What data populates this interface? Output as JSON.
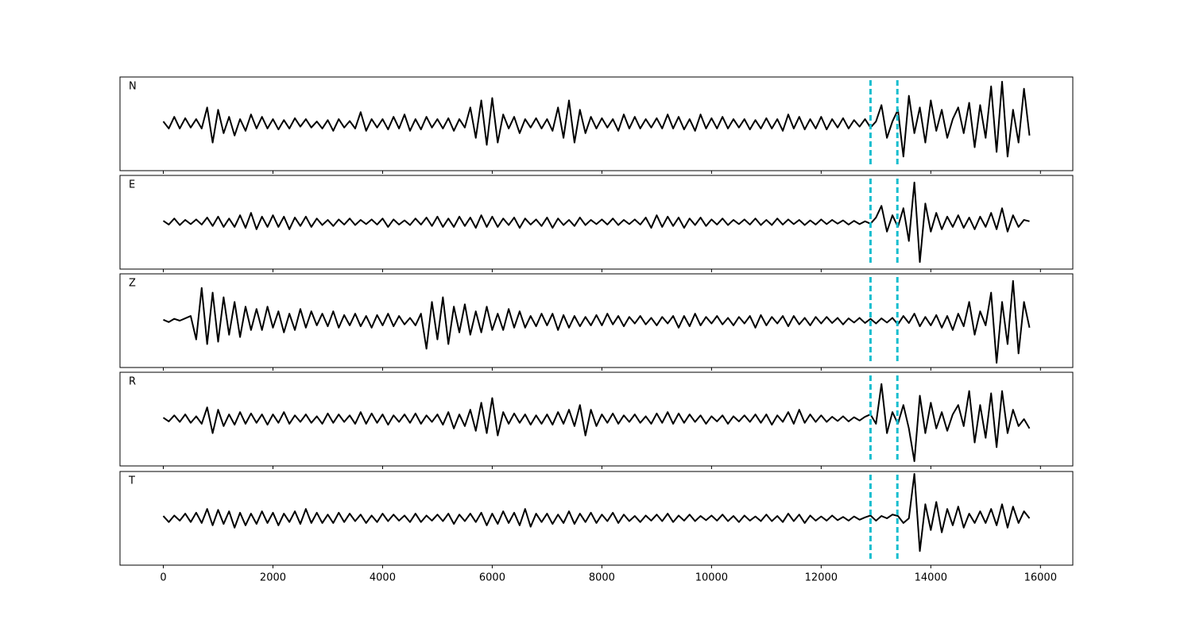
{
  "chart_data": {
    "type": "line",
    "x": [
      0,
      100,
      200,
      300,
      400,
      500,
      600,
      700,
      800,
      900,
      1000,
      1100,
      1200,
      1300,
      1400,
      1500,
      1600,
      1700,
      1800,
      1900,
      2000,
      2100,
      2200,
      2300,
      2400,
      2500,
      2600,
      2700,
      2800,
      2900,
      3000,
      3100,
      3200,
      3300,
      3400,
      3500,
      3600,
      3700,
      3800,
      3900,
      4000,
      4100,
      4200,
      4300,
      4400,
      4500,
      4600,
      4700,
      4800,
      4900,
      5000,
      5100,
      5200,
      5300,
      5400,
      5500,
      5600,
      5700,
      5800,
      5900,
      6000,
      6100,
      6200,
      6300,
      6400,
      6500,
      6600,
      6700,
      6800,
      6900,
      7000,
      7100,
      7200,
      7300,
      7400,
      7500,
      7600,
      7700,
      7800,
      7900,
      8000,
      8100,
      8200,
      8300,
      8400,
      8500,
      8600,
      8700,
      8800,
      8900,
      9000,
      9100,
      9200,
      9300,
      9400,
      9500,
      9600,
      9700,
      9800,
      9900,
      10000,
      10100,
      10200,
      10300,
      10400,
      10500,
      10600,
      10700,
      10800,
      10900,
      11000,
      11100,
      11200,
      11300,
      11400,
      11500,
      11600,
      11700,
      11800,
      11900,
      12000,
      12100,
      12200,
      12300,
      12400,
      12500,
      12600,
      12700,
      12800,
      12900,
      13000,
      13100,
      13200,
      13300,
      13400,
      13500,
      13600,
      13700,
      13800,
      13900,
      14000,
      14100,
      14200,
      14300,
      14400,
      14500,
      14600,
      14700,
      14800,
      14900,
      15000,
      15100,
      15200,
      15300,
      15400,
      15500,
      15600,
      15700,
      15800
    ],
    "series": [
      {
        "name": "N",
        "color": "#000000",
        "values": [
          0.05,
          -0.1,
          0.15,
          -0.1,
          0.12,
          -0.08,
          0.1,
          -0.1,
          0.35,
          -0.4,
          0.3,
          -0.2,
          0.15,
          -0.25,
          0.1,
          -0.15,
          0.2,
          -0.1,
          0.15,
          -0.1,
          0.1,
          -0.12,
          0.08,
          -0.1,
          0.12,
          -0.06,
          0.1,
          -0.08,
          0.05,
          -0.1,
          0.08,
          -0.15,
          0.1,
          -0.08,
          0.06,
          -0.1,
          0.25,
          -0.15,
          0.1,
          -0.08,
          0.1,
          -0.12,
          0.15,
          -0.1,
          0.2,
          -0.15,
          0.1,
          -0.12,
          0.15,
          -0.08,
          0.1,
          -0.1,
          0.12,
          -0.15,
          0.1,
          -0.08,
          0.35,
          -0.3,
          0.5,
          -0.45,
          0.55,
          -0.4,
          0.2,
          -0.1,
          0.15,
          -0.2,
          0.1,
          -0.08,
          0.12,
          -0.1,
          0.1,
          -0.15,
          0.35,
          -0.3,
          0.5,
          -0.4,
          0.3,
          -0.2,
          0.15,
          -0.1,
          0.12,
          -0.08,
          0.1,
          -0.15,
          0.2,
          -0.1,
          0.15,
          -0.1,
          0.1,
          -0.08,
          0.12,
          -0.1,
          0.2,
          -0.1,
          0.15,
          -0.12,
          0.1,
          -0.15,
          0.2,
          -0.1,
          0.12,
          -0.1,
          0.15,
          -0.1,
          0.1,
          -0.08,
          0.1,
          -0.12,
          0.08,
          -0.1,
          0.12,
          -0.1,
          0.1,
          -0.15,
          0.2,
          -0.1,
          0.15,
          -0.12,
          0.1,
          -0.1,
          0.15,
          -0.12,
          0.1,
          -0.08,
          0.12,
          -0.1,
          0.08,
          -0.06,
          0.1,
          -0.08,
          0.05,
          0.4,
          -0.3,
          0.05,
          0.3,
          -0.7,
          0.6,
          -0.2,
          0.35,
          -0.4,
          0.5,
          -0.15,
          0.3,
          -0.3,
          0.1,
          0.35,
          -0.2,
          0.45,
          -0.5,
          0.4,
          -0.3,
          0.8,
          -0.6,
          0.9,
          -0.7,
          0.3,
          -0.4,
          0.75,
          -0.25
        ]
      },
      {
        "name": "E",
        "color": "#000000",
        "values": [
          0.03,
          -0.05,
          0.08,
          -0.06,
          0.05,
          -0.04,
          0.06,
          -0.05,
          0.1,
          -0.08,
          0.12,
          -0.1,
          0.08,
          -0.1,
          0.15,
          -0.12,
          0.2,
          -0.15,
          0.12,
          -0.1,
          0.15,
          -0.1,
          0.12,
          -0.15,
          0.1,
          -0.08,
          0.12,
          -0.1,
          0.08,
          -0.06,
          0.05,
          -0.08,
          0.06,
          -0.05,
          0.08,
          -0.06,
          0.05,
          -0.04,
          0.06,
          -0.05,
          0.08,
          -0.1,
          0.06,
          -0.05,
          0.04,
          -0.06,
          0.08,
          -0.05,
          0.1,
          -0.08,
          0.12,
          -0.1,
          0.08,
          -0.1,
          0.12,
          -0.08,
          0.1,
          -0.12,
          0.15,
          -0.1,
          0.12,
          -0.1,
          0.08,
          -0.06,
          0.1,
          -0.12,
          0.08,
          -0.05,
          0.06,
          -0.08,
          0.1,
          -0.12,
          0.08,
          -0.06,
          0.05,
          -0.08,
          0.1,
          -0.06,
          0.05,
          -0.04,
          0.06,
          -0.05,
          0.08,
          -0.06,
          0.05,
          -0.04,
          0.06,
          -0.05,
          0.1,
          -0.12,
          0.15,
          -0.1,
          0.12,
          -0.08,
          0.1,
          -0.12,
          0.08,
          -0.06,
          0.1,
          -0.08,
          0.06,
          -0.05,
          0.08,
          -0.06,
          0.05,
          -0.04,
          0.06,
          -0.05,
          0.08,
          -0.06,
          0.05,
          -0.06,
          0.08,
          -0.05,
          0.06,
          -0.04,
          0.05,
          -0.06,
          0.04,
          -0.05,
          0.06,
          -0.04,
          0.05,
          -0.03,
          0.04,
          -0.05,
          0.03,
          -0.04,
          0.02,
          -0.03,
          0.1,
          0.35,
          -0.2,
          0.15,
          -0.1,
          0.3,
          -0.4,
          0.85,
          -0.85,
          0.4,
          -0.2,
          0.2,
          -0.15,
          0.12,
          -0.1,
          0.15,
          -0.12,
          0.1,
          -0.15,
          0.12,
          -0.1,
          0.2,
          -0.15,
          0.3,
          -0.2,
          0.15,
          -0.1,
          0.05,
          0.02
        ]
      },
      {
        "name": "Z",
        "color": "#000000",
        "values": [
          0.02,
          -0.03,
          0.04,
          0.0,
          0.05,
          0.1,
          -0.4,
          0.7,
          -0.5,
          0.6,
          -0.45,
          0.5,
          -0.3,
          0.4,
          -0.35,
          0.3,
          -0.2,
          0.25,
          -0.2,
          0.3,
          -0.15,
          0.2,
          -0.25,
          0.15,
          -0.2,
          0.25,
          -0.15,
          0.2,
          -0.1,
          0.15,
          -0.12,
          0.2,
          -0.15,
          0.12,
          -0.1,
          0.15,
          -0.12,
          0.1,
          -0.15,
          0.12,
          -0.1,
          0.15,
          -0.12,
          0.1,
          -0.08,
          0.06,
          -0.1,
          0.15,
          -0.6,
          0.4,
          -0.4,
          0.5,
          -0.5,
          0.3,
          -0.25,
          0.35,
          -0.3,
          0.2,
          -0.25,
          0.3,
          -0.2,
          0.15,
          -0.2,
          0.25,
          -0.15,
          0.2,
          -0.15,
          0.1,
          -0.12,
          0.15,
          -0.1,
          0.15,
          -0.2,
          0.12,
          -0.15,
          0.1,
          -0.12,
          0.08,
          -0.1,
          0.12,
          -0.1,
          0.15,
          -0.08,
          0.1,
          -0.12,
          0.08,
          -0.06,
          0.1,
          -0.08,
          0.06,
          -0.1,
          0.08,
          -0.06,
          0.1,
          -0.15,
          0.1,
          -0.12,
          0.15,
          -0.1,
          0.08,
          -0.06,
          0.1,
          -0.08,
          0.06,
          -0.1,
          0.08,
          -0.06,
          0.1,
          -0.15,
          0.12,
          -0.1,
          0.08,
          -0.06,
          0.1,
          -0.12,
          0.1,
          -0.08,
          0.06,
          -0.1,
          0.08,
          -0.06,
          0.08,
          -0.05,
          0.06,
          -0.08,
          0.05,
          -0.04,
          0.06,
          -0.05,
          0.04,
          -0.06,
          0.05,
          -0.04,
          0.06,
          -0.08,
          0.1,
          -0.05,
          0.15,
          -0.12,
          0.08,
          -0.1,
          0.12,
          -0.15,
          0.1,
          -0.2,
          0.15,
          -0.12,
          0.4,
          -0.3,
          0.2,
          -0.1,
          0.6,
          -0.9,
          0.4,
          -0.5,
          0.85,
          -0.7,
          0.4,
          -0.15
        ]
      },
      {
        "name": "R",
        "color": "#000000",
        "values": [
          0.03,
          -0.05,
          0.08,
          -0.06,
          0.1,
          -0.08,
          0.06,
          -0.1,
          0.25,
          -0.3,
          0.2,
          -0.15,
          0.1,
          -0.12,
          0.15,
          -0.1,
          0.12,
          -0.08,
          0.1,
          -0.12,
          0.1,
          -0.08,
          0.15,
          -0.1,
          0.08,
          -0.06,
          0.1,
          -0.08,
          0.06,
          -0.1,
          0.12,
          -0.08,
          0.1,
          -0.06,
          0.08,
          -0.1,
          0.15,
          -0.1,
          0.12,
          -0.08,
          0.1,
          -0.12,
          0.08,
          -0.06,
          0.1,
          -0.08,
          0.12,
          -0.1,
          0.08,
          -0.06,
          0.1,
          -0.12,
          0.15,
          -0.2,
          0.1,
          -0.15,
          0.2,
          -0.25,
          0.35,
          -0.3,
          0.45,
          -0.35,
          0.15,
          -0.1,
          0.12,
          -0.08,
          0.1,
          -0.12,
          0.08,
          -0.1,
          0.1,
          -0.12,
          0.15,
          -0.1,
          0.2,
          -0.15,
          0.3,
          -0.35,
          0.2,
          -0.15,
          0.1,
          -0.08,
          0.12,
          -0.1,
          0.08,
          -0.06,
          0.1,
          -0.08,
          0.06,
          -0.1,
          0.12,
          -0.08,
          0.15,
          -0.1,
          0.12,
          -0.08,
          0.1,
          -0.06,
          0.08,
          -0.1,
          0.06,
          -0.05,
          0.08,
          -0.1,
          0.06,
          -0.05,
          0.08,
          -0.06,
          0.1,
          -0.08,
          0.1,
          -0.12,
          0.08,
          -0.06,
          0.15,
          -0.1,
          0.2,
          -0.08,
          0.1,
          -0.06,
          0.08,
          -0.06,
          0.05,
          -0.04,
          0.06,
          -0.05,
          0.04,
          -0.03,
          0.05,
          0.1,
          -0.1,
          0.75,
          -0.3,
          0.15,
          -0.1,
          0.3,
          -0.2,
          -0.9,
          0.5,
          -0.3,
          0.35,
          -0.2,
          0.15,
          -0.25,
          0.1,
          0.3,
          -0.15,
          0.6,
          -0.5,
          0.3,
          -0.4,
          0.55,
          -0.6,
          0.6,
          -0.3,
          0.2,
          -0.15,
          0.0,
          -0.2
        ]
      },
      {
        "name": "T",
        "color": "#000000",
        "values": [
          0.05,
          -0.08,
          0.06,
          -0.05,
          0.1,
          -0.08,
          0.12,
          -0.1,
          0.2,
          -0.15,
          0.18,
          -0.12,
          0.15,
          -0.2,
          0.12,
          -0.15,
          0.1,
          -0.12,
          0.15,
          -0.1,
          0.12,
          -0.15,
          0.1,
          -0.08,
          0.15,
          -0.12,
          0.2,
          -0.1,
          0.12,
          -0.1,
          0.08,
          -0.1,
          0.12,
          -0.08,
          0.1,
          -0.06,
          0.08,
          -0.1,
          0.06,
          -0.08,
          0.1,
          -0.06,
          0.08,
          -0.05,
          0.06,
          -0.08,
          0.1,
          -0.08,
          0.06,
          -0.05,
          0.08,
          -0.06,
          0.1,
          -0.12,
          0.08,
          -0.06,
          0.1,
          -0.08,
          0.12,
          -0.15,
          0.1,
          -0.12,
          0.15,
          -0.1,
          0.12,
          -0.15,
          0.2,
          -0.18,
          0.1,
          -0.08,
          0.1,
          -0.12,
          0.08,
          -0.1,
          0.15,
          -0.12,
          0.1,
          -0.08,
          0.12,
          -0.1,
          0.08,
          -0.06,
          0.12,
          -0.1,
          0.08,
          -0.06,
          0.05,
          -0.08,
          0.06,
          -0.05,
          0.08,
          -0.06,
          0.1,
          -0.08,
          0.06,
          -0.05,
          0.08,
          -0.06,
          0.05,
          -0.04,
          0.06,
          -0.05,
          0.08,
          -0.06,
          0.05,
          -0.08,
          0.06,
          -0.05,
          0.04,
          -0.06,
          0.08,
          -0.06,
          0.05,
          -0.08,
          0.1,
          -0.06,
          0.08,
          -0.1,
          0.06,
          -0.05,
          0.04,
          -0.05,
          0.06,
          -0.04,
          0.03,
          -0.05,
          0.04,
          -0.03,
          0.02,
          0.06,
          -0.05,
          0.05,
          0.0,
          0.08,
          0.05,
          -0.1,
          0.0,
          0.95,
          -0.7,
          0.3,
          -0.25,
          0.35,
          -0.3,
          0.2,
          -0.15,
          0.25,
          -0.2,
          0.1,
          -0.1,
          0.15,
          -0.1,
          0.2,
          -0.15,
          0.3,
          -0.2,
          0.25,
          -0.1,
          0.15,
          0.0
        ]
      }
    ],
    "xlim": [
      -790,
      16590
    ],
    "xticks": [
      0,
      2000,
      4000,
      6000,
      8000,
      10000,
      12000,
      14000,
      16000
    ],
    "ylim": [
      -1,
      1
    ],
    "vlines": [
      12900,
      13390
    ],
    "vline_color": "#17becf"
  }
}
